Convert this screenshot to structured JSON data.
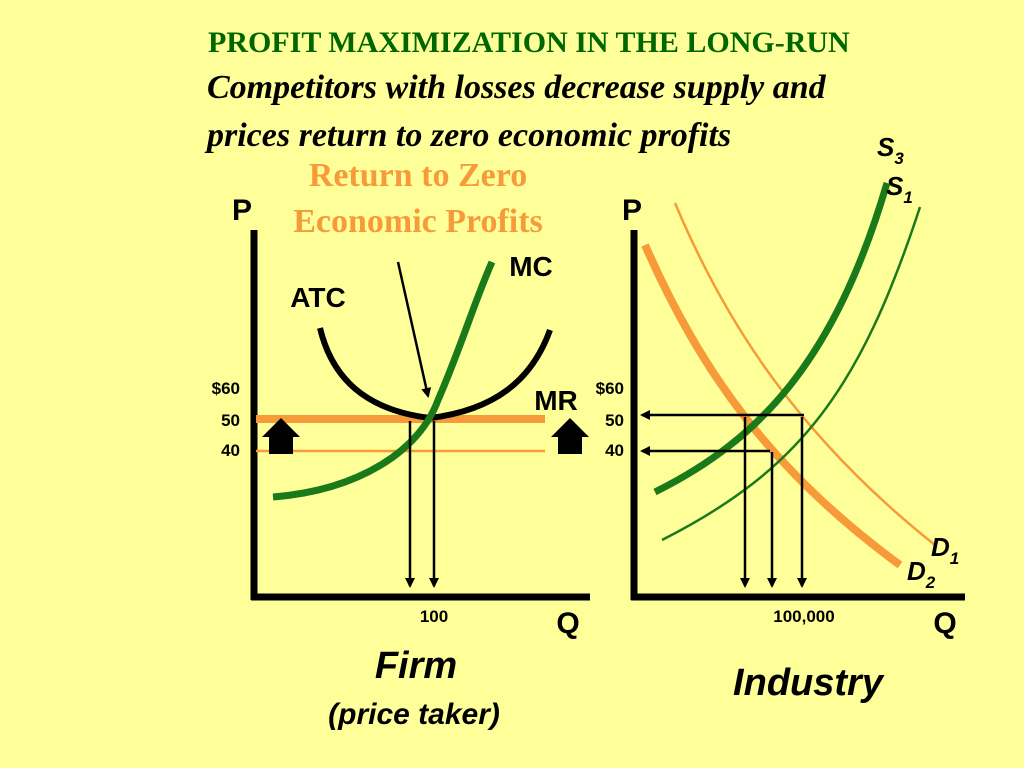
{
  "title": "PROFIT MAXIMIZATION IN THE LONG-RUN",
  "subtitle_line1": "Competitors with losses decrease supply and",
  "subtitle_line2": "prices return to zero economic profits",
  "callout_line1": "Return to Zero",
  "callout_line2": "Economic Profits",
  "colors": {
    "background": "#ffff99",
    "title": "#006600",
    "orange": "#f79b3a",
    "green": "#1a7a1a",
    "black": "#000000"
  },
  "firm": {
    "axis_y": "P",
    "axis_x": "Q",
    "ticks": {
      "p60": "$60",
      "p50": "50",
      "p40": "40",
      "q": "100"
    },
    "labels": {
      "mc": "MC",
      "atc": "ATC",
      "mr": "MR"
    },
    "caption": "Firm",
    "caption_sub": "(price taker)"
  },
  "industry": {
    "axis_y": "P",
    "axis_x": "Q",
    "ticks": {
      "p60": "$60",
      "p50": "50",
      "p40": "40",
      "q": "100,000"
    },
    "labels": {
      "s3": "S",
      "s3_sub": "3",
      "s1": "S",
      "s1_sub": "1",
      "d1": "D",
      "d1_sub": "1",
      "d2": "D",
      "d2_sub": "2"
    },
    "caption": "Industry"
  }
}
